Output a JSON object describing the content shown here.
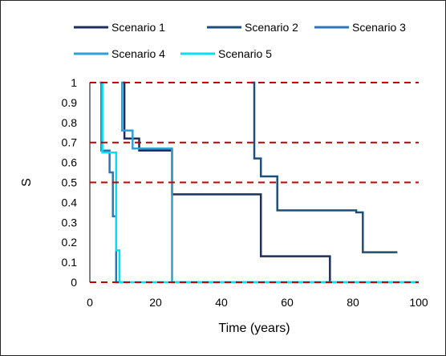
{
  "chart_data": {
    "type": "line",
    "step": true,
    "title": "",
    "xlabel": "Time (years)",
    "ylabel": "S",
    "xlim": [
      0,
      100
    ],
    "ylim": [
      0,
      1
    ],
    "xticks": [
      0,
      20,
      40,
      60,
      80,
      100
    ],
    "xtick_labels": [
      "0",
      "20",
      "40",
      "60",
      "80",
      "100"
    ],
    "yticks": [
      0,
      0.1,
      0.2,
      0.3,
      0.4,
      0.5,
      0.6,
      0.7,
      0.8,
      0.9,
      1
    ],
    "ytick_labels": [
      "0",
      "0.1",
      "0.2",
      "0.3",
      "0.4",
      "0.5",
      "0.6",
      "0.7",
      "0.8",
      "0.9",
      "1"
    ],
    "grid": false,
    "legend_position": "top",
    "reference_lines": [
      {
        "y": 1.0,
        "color": "#C00000",
        "style": "dashed"
      },
      {
        "y": 0.7,
        "color": "#C00000",
        "style": "dashed"
      },
      {
        "y": 0.5,
        "color": "#C00000",
        "style": "dashed"
      },
      {
        "y": 0.0,
        "color": "#C00000",
        "style": "dashed"
      }
    ],
    "series": [
      {
        "name": "Scenario 1",
        "color": "#1F2F5C",
        "x": [
          10,
          10.5,
          10.5,
          15,
          15,
          25,
          25,
          52,
          52,
          73,
          73
        ],
        "y": [
          1,
          1,
          0.72,
          0.72,
          0.66,
          0.66,
          0.44,
          0.44,
          0.13,
          0.13,
          0
        ]
      },
      {
        "name": "Scenario 2",
        "color": "#1F4E79",
        "x": [
          49,
          49,
          50,
          50,
          52,
          52,
          57,
          57,
          81,
          81,
          83,
          83,
          93.5
        ],
        "y": [
          1,
          1,
          1,
          0.62,
          0.62,
          0.53,
          0.53,
          0.36,
          0.36,
          0.35,
          0.35,
          0.15,
          0.15
        ]
      },
      {
        "name": "Scenario 3",
        "color": "#2E75B6",
        "x": [
          3,
          3.5,
          3.5,
          6,
          6,
          7,
          7,
          8,
          8,
          10,
          10
        ],
        "y": [
          1,
          1,
          0.66,
          0.66,
          0.55,
          0.55,
          0.33,
          0.33,
          0,
          0,
          0
        ]
      },
      {
        "name": "Scenario 4",
        "color": "#2F9FD8",
        "x": [
          9.5,
          9.8,
          9.8,
          13,
          13,
          25,
          25,
          100
        ],
        "y": [
          1,
          1,
          0.76,
          0.76,
          0.67,
          0.67,
          0,
          0
        ]
      },
      {
        "name": "Scenario 5",
        "color": "#00E0F0",
        "x": [
          3.5,
          3.8,
          3.8,
          8,
          8,
          9,
          9,
          100
        ],
        "y": [
          1,
          1,
          0.65,
          0.65,
          0.16,
          0.16,
          0,
          0
        ]
      }
    ]
  }
}
